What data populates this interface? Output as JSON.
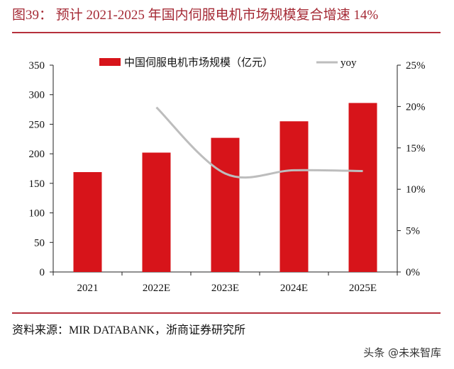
{
  "title": "图39：  预计 2021-2025 年国内伺服电机市场规模复合增速 14%",
  "source": "资料来源：MIR DATABANK，浙商证券研究所",
  "watermark": "头条 @未来智库",
  "chart_data": {
    "type": "bar+line",
    "categories": [
      "2021",
      "2022E",
      "2023E",
      "2024E",
      "2025E"
    ],
    "series": [
      {
        "name": "中国伺服电机市场规模（亿元）",
        "type": "bar",
        "axis": "left",
        "color": "#d7141a",
        "values": [
          169,
          202,
          227,
          255,
          286
        ]
      },
      {
        "name": "yoy",
        "type": "line",
        "axis": "right",
        "color": "#bdbdbd",
        "values": [
          null,
          19.9,
          11.9,
          12.3,
          12.2
        ]
      }
    ],
    "left_axis": {
      "ylim": [
        0,
        350
      ],
      "ticks": [
        "0",
        "50",
        "100",
        "150",
        "200",
        "250",
        "300",
        "350"
      ]
    },
    "right_axis": {
      "ylim": [
        0,
        25
      ],
      "ticks": [
        "0%",
        "5%",
        "10%",
        "15%",
        "20%",
        "25%"
      ]
    },
    "legend": "top",
    "grid": false
  }
}
